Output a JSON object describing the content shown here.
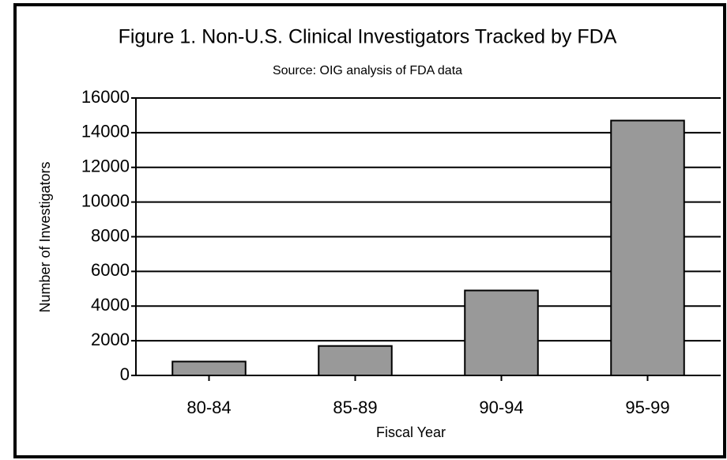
{
  "chart_data": {
    "type": "bar",
    "title": "Figure 1. Non-U.S. Clinical Investigators Tracked by FDA",
    "subtitle": "Source: OIG analysis of FDA data",
    "x_label": "Fiscal Year",
    "y_label": "Number of Investigators",
    "categories": [
      "80-84",
      "85-89",
      "90-94",
      "95-99"
    ],
    "values": [
      800,
      1700,
      4900,
      14700
    ],
    "color": "#999999",
    "ylim": [
      0,
      16000
    ],
    "yticks": [
      0,
      2000,
      4000,
      6000,
      8000,
      10000,
      12000,
      14000,
      16000
    ],
    "grid": true
  }
}
